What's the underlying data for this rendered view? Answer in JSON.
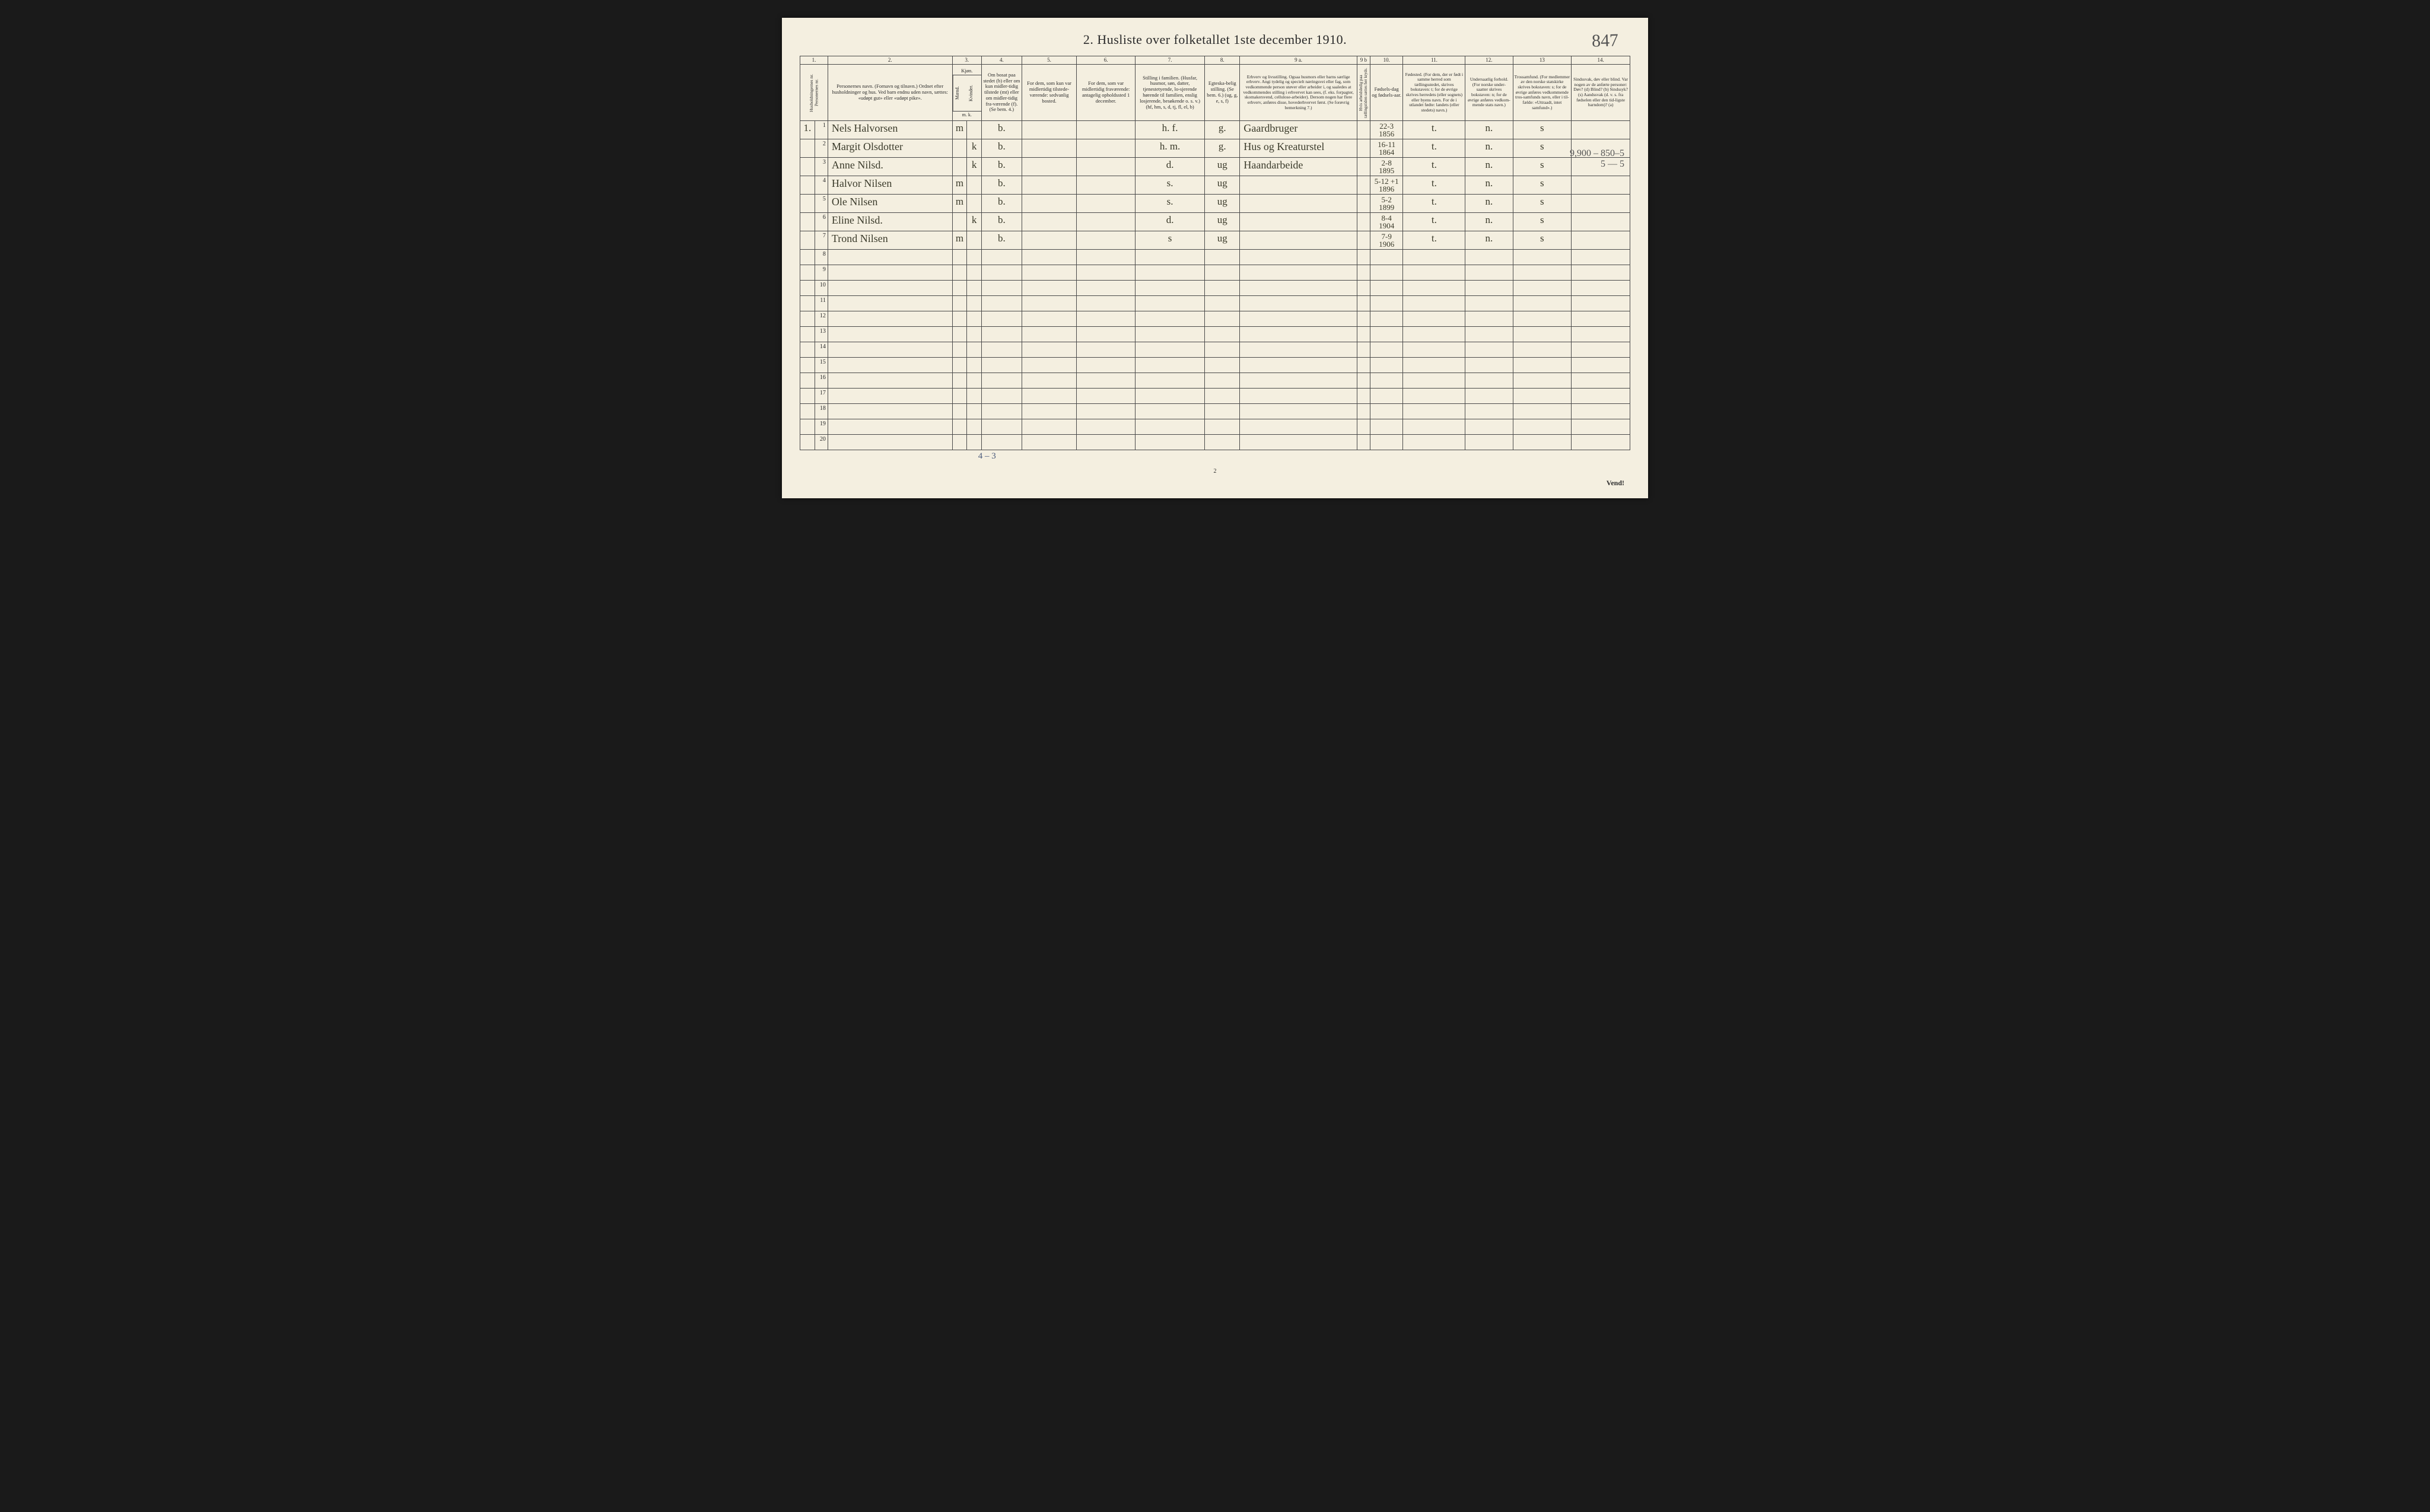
{
  "title": "2.  Husliste over folketallet 1ste december 1910.",
  "corner_note": "847",
  "margin_note_top": "9,900 – 850–5",
  "margin_note_bot": "5 — 5",
  "colnums": [
    "1.",
    "2.",
    "3.",
    "4.",
    "5.",
    "6.",
    "7.",
    "8.",
    "9 a.",
    "9 b",
    "10.",
    "11.",
    "12.",
    "13",
    "14."
  ],
  "headers": {
    "h1": "Husholdningernes nr.\nPersonernes nr.",
    "h2": "Personernes navn.\n(Fornavn og tilnavn.)\nOrdnet efter husholdninger og hus.\nVed barn endnu uden navn, sættes: «udøpt gut» eller «udøpt pike».",
    "h3": "Kjøn.",
    "h3a": "Mænd.",
    "h3b": "Kvinder.",
    "h3sub": "m.  k.",
    "h4": "Om bosat paa stedet (b) eller om kun midler-tidig tilstede (mt) eller om midler-tidig fra-værende (f).\n(Se bem. 4.)",
    "h5": "For dem, som kun var midlertidig tilstede-værende:\nsedvanlig bosted.",
    "h6": "For dem, som var midlertidig fraværende:\nantagelig opholdssted 1 december.",
    "h7": "Stilling i familien.\n(Husfar, husmor, søn, datter, tjenestetyende, lo-sjerende hørende til familien, enslig losjerende, besøkende o. s. v.)\n(hf, hm, s, d, tj, fl, el, b)",
    "h8": "Egteska-belig stilling.\n(Se bem. 6.)\n(ug, g, e, s, f)",
    "h9a": "Erhverv og livsstilling.\nOgsaa husmors eller barns særlige erhverv. Angi tydelig og specielt næringsvei eller fag, som vedkommende person utøver eller arbeider i, og saaledes at vedkommendes stilling i erhvervet kan sees, (f. eks. forpagter, skomakersvend, cellulose-arbeider). Dersom nogen har flere erhverv, anføres disse, hovederhvervet først.\n(Se forøvrig bemerkning 7.)",
    "h9b": "Hvis arbeidsledig paa tællingstiden sættes her kryds.",
    "h10": "Fødsels-dag og fødsels-aar.",
    "h11": "Fødested.\n(For dem, der er født i samme herred som tællingsstedet, skrives bokstaven: t; for de øvrige skrives herredets (eller sognets) eller byens navn. For de i utlandet fødte: landets (eller stedets) navn.)",
    "h12": "Undersaatlig forhold.\n(For norske under-saatter skrives bokstaven: n; for de øvrige anføres vedkom-mende stats navn.)",
    "h13": "Trossamfund.\n(For medlemmer av den norske statskirke skrives bokstaven: s; for de øvrige anføres vedkommende tros-samfunds navn, eller i til-fælde: «Uttraadt, intet samfund».)",
    "h14": "Sindssvak, døv eller blind.\nVar nogen av de anførte personer:\nDøv?       (d)\nBlind?     (b)\nSindssyk? (s)\nAandssvak (d. v. s. fra fødselen eller den tid-ligste barndom)? (a)"
  },
  "rows": [
    {
      "hh": "1.",
      "n": "1",
      "name": "Nels Halvorsen",
      "mk": "m",
      "b": "b.",
      "c7": "h. f.",
      "c8": "g.",
      "c9": "Gaardbruger",
      "c10t": "22-3",
      "c10b": "1856",
      "c11": "t.",
      "c12": "n.",
      "c13": "s"
    },
    {
      "hh": "",
      "n": "2",
      "name": "Margit Olsdotter",
      "mk": "k",
      "b": "b.",
      "c7": "h. m.",
      "c8": "g.",
      "c9": "Hus og Kreaturstel",
      "c10t": "16-11",
      "c10b": "1864",
      "c11": "t.",
      "c12": "n.",
      "c13": "s"
    },
    {
      "hh": "",
      "n": "3",
      "name": "Anne Nilsd.",
      "mk": "k",
      "b": "b.",
      "c7": "d.",
      "c8": "ug",
      "c9": "Haandarbeide",
      "c10t": "2-8",
      "c10b": "1895",
      "c11": "t.",
      "c12": "n.",
      "c13": "s"
    },
    {
      "hh": "",
      "n": "4",
      "name": "Halvor Nilsen",
      "mk": "m",
      "b": "b.",
      "c7": "s.",
      "c8": "ug",
      "c9": "",
      "c10t": "5-12 +1",
      "c10b": "1896",
      "c11": "t.",
      "c12": "n.",
      "c13": "s"
    },
    {
      "hh": "",
      "n": "5",
      "name": "Ole Nilsen",
      "mk": "m",
      "b": "b.",
      "c7": "s.",
      "c8": "ug",
      "c9": "",
      "c10t": "5-2",
      "c10b": "1899",
      "c11": "t.",
      "c12": "n.",
      "c13": "s"
    },
    {
      "hh": "",
      "n": "6",
      "name": "Eline Nilsd.",
      "mk": "k",
      "b": "b.",
      "c7": "d.",
      "c8": "ug",
      "c9": "",
      "c10t": "8-4",
      "c10b": "1904",
      "c11": "t.",
      "c12": "n.",
      "c13": "s"
    },
    {
      "hh": "",
      "n": "7",
      "name": "Trond Nilsen",
      "mk": "m",
      "b": "b.",
      "c7": "s",
      "c8": "ug",
      "c9": "",
      "c10t": "7-9",
      "c10b": "1906",
      "c11": "t.",
      "c12": "n.",
      "c13": "s"
    }
  ],
  "empty_rows": [
    "8",
    "9",
    "10",
    "11",
    "12",
    "13",
    "14",
    "15",
    "16",
    "17",
    "18",
    "19",
    "20"
  ],
  "tally": "4 – 3",
  "page_num": "2",
  "vend": "Vend!",
  "colors": {
    "paper": "#f4efe0",
    "ink": "#2a2a2a",
    "hand": "#3a3a2a",
    "border": "#4a4a4a",
    "bg": "#1a1a1a"
  }
}
